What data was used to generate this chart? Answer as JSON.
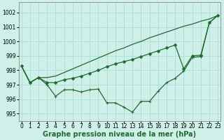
{
  "background_color": "#cff0e8",
  "grid_color": "#a8ddd4",
  "line_color": "#1e6b30",
  "xlabel": "Graphe pression niveau de la mer (hPa)",
  "ylim": [
    994.5,
    1002.7
  ],
  "yticks": [
    995,
    996,
    997,
    998,
    999,
    1000,
    1001,
    1002
  ],
  "xlim": [
    -0.3,
    23.3
  ],
  "xticks": [
    0,
    1,
    2,
    3,
    4,
    5,
    6,
    7,
    8,
    9,
    10,
    11,
    12,
    13,
    14,
    15,
    16,
    17,
    18,
    19,
    20,
    21,
    22,
    23
  ],
  "series1": [
    998.3,
    997.15,
    997.5,
    997.5,
    997.6,
    997.85,
    998.1,
    998.35,
    998.6,
    998.85,
    999.1,
    999.35,
    999.55,
    999.8,
    1000.0,
    1000.25,
    1000.45,
    1000.65,
    1000.85,
    1001.05,
    1001.2,
    1001.4,
    1001.55,
    1001.8
  ],
  "series2": [
    998.3,
    997.15,
    997.5,
    997.15,
    997.15,
    997.35,
    997.45,
    997.6,
    997.8,
    998.0,
    998.25,
    998.45,
    998.6,
    998.75,
    998.95,
    999.15,
    999.35,
    999.55,
    999.75,
    998.1,
    999.0,
    999.05,
    1001.3,
    1001.8
  ],
  "series3": [
    998.3,
    997.15,
    997.5,
    997.0,
    996.2,
    996.65,
    996.65,
    996.5,
    996.65,
    996.7,
    995.75,
    995.75,
    995.45,
    995.1,
    995.85,
    995.85,
    996.55,
    997.15,
    997.45,
    997.95,
    998.9,
    998.95,
    1001.3,
    1001.8
  ],
  "tick_fontsize": 5.5,
  "xlabel_fontsize": 7.0,
  "line_width": 0.9,
  "marker_size": 2.5,
  "fig_width": 3.2,
  "fig_height": 2.0,
  "dpi": 100
}
